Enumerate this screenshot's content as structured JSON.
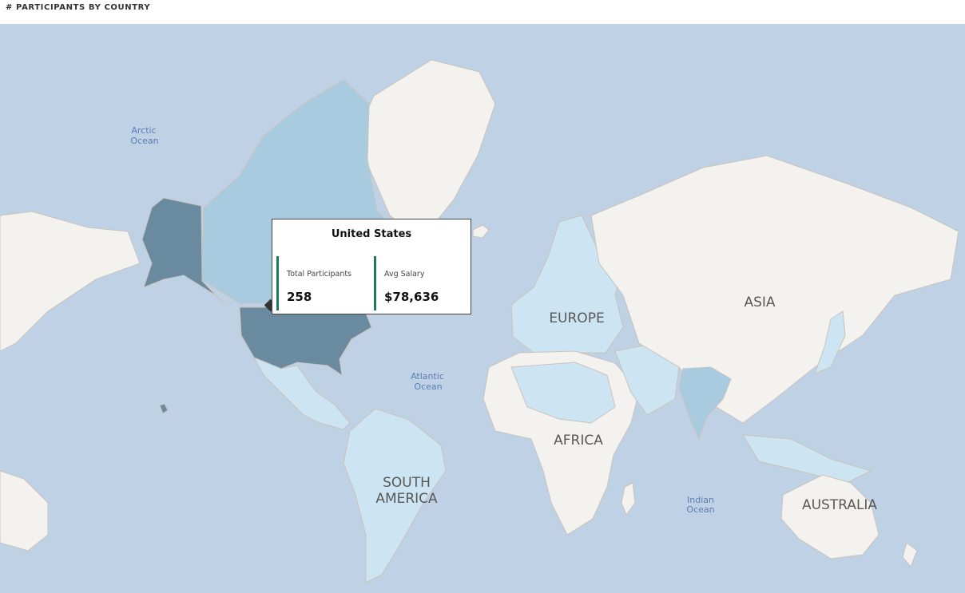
{
  "title": "# PARTICIPANTS BY COUNTRY",
  "colors": {
    "ocean": "#bfd1e5",
    "land_default": "#f4f2ef",
    "land_tier_low": "#cde4f2",
    "land_tier_mid": "#a9cbe0",
    "land_highlight": "#6a8aa0",
    "tooltip_accent": "#1d7a5a"
  },
  "map_labels": {
    "oceans": {
      "arctic_line1": "Arctic",
      "arctic_line2": "Ocean",
      "atlantic_line1": "Atlantic",
      "atlantic_line2": "Ocean",
      "indian_line1": "Indian",
      "indian_line2": "Ocean"
    },
    "continents": {
      "europe": "EUROPE",
      "asia": "ASIA",
      "africa": "AFRICA",
      "south_america_line1": "SOUTH",
      "south_america_line2": "AMERICA",
      "australia": "AUSTRALIA"
    }
  },
  "tooltip": {
    "country": "United States",
    "total_participants_label": "Total Participants",
    "total_participants_value": "258",
    "avg_salary_label": "Avg Salary",
    "avg_salary_value": "$78,636"
  }
}
